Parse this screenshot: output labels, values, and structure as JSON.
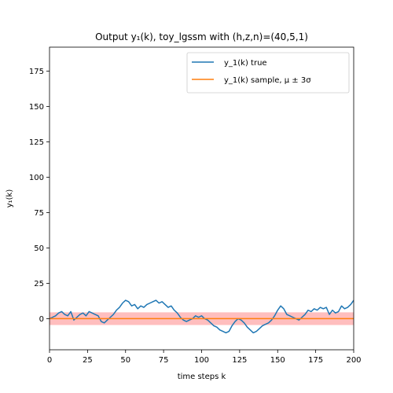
{
  "chart_data": {
    "type": "line",
    "title": "Output y₁(k), toy_lgssm with (h,z,n)=(40,5,1)",
    "xlabel": "time steps k",
    "ylabel": "y₁(k)",
    "xlim": [
      0,
      200
    ],
    "ylim": [
      -22,
      192
    ],
    "xticks": [
      0,
      25,
      50,
      75,
      100,
      125,
      150,
      175,
      200
    ],
    "yticks": [
      0,
      25,
      50,
      75,
      100,
      125,
      150,
      175
    ],
    "grid": false,
    "legend_position": "top-right",
    "series": [
      {
        "name": "y_1(k) true",
        "color": "#1f77b4",
        "x": [
          0,
          2,
          4,
          6,
          8,
          10,
          12,
          14,
          16,
          18,
          20,
          22,
          24,
          26,
          28,
          30,
          32,
          34,
          36,
          38,
          40,
          42,
          44,
          46,
          48,
          50,
          52,
          54,
          56,
          58,
          60,
          62,
          64,
          66,
          68,
          70,
          72,
          74,
          76,
          78,
          80,
          82,
          84,
          86,
          88,
          90,
          92,
          94,
          96,
          98,
          100,
          102,
          104,
          106,
          108,
          110,
          112,
          114,
          116,
          118,
          120,
          122,
          124,
          126,
          128,
          130,
          132,
          134,
          136,
          138,
          140,
          142,
          144,
          146,
          148,
          150,
          152,
          154,
          156,
          158,
          160,
          162,
          164,
          166,
          168,
          170,
          172,
          174,
          176,
          178,
          180,
          182,
          184,
          186,
          188,
          190,
          192,
          194,
          196,
          198,
          200
        ],
        "y": [
          0,
          1,
          2,
          4,
          5,
          3,
          2,
          5,
          -1,
          1,
          3,
          4,
          2,
          5,
          4,
          3,
          2,
          -2,
          -3,
          -1,
          1,
          3,
          6,
          8,
          11,
          13,
          12,
          9,
          10,
          7,
          9,
          8,
          10,
          11,
          12,
          13,
          11,
          12,
          10,
          8,
          9,
          6,
          4,
          1,
          -1,
          -2,
          -1,
          0,
          2,
          1,
          2,
          0,
          -1,
          -3,
          -5,
          -6,
          -8,
          -9,
          -10,
          -9,
          -5,
          -2,
          0,
          -1,
          -3,
          -6,
          -8,
          -10,
          -9,
          -7,
          -5,
          -4,
          -3,
          -1,
          2,
          6,
          9,
          7,
          3,
          2,
          1,
          0,
          -1,
          1,
          3,
          6,
          5,
          7,
          6,
          8,
          7,
          8,
          3,
          6,
          4,
          5,
          9,
          7,
          8,
          10,
          13
        ]
      },
      {
        "name": "y_1(k) sample, μ ± 3σ",
        "color": "#ff7f0e",
        "band_color": "#ffb3b3",
        "x": [
          0,
          200
        ],
        "mean": [
          0,
          0
        ],
        "band_lower": [
          -4.5,
          -4.5
        ],
        "band_upper": [
          4.5,
          4.5
        ]
      }
    ]
  }
}
